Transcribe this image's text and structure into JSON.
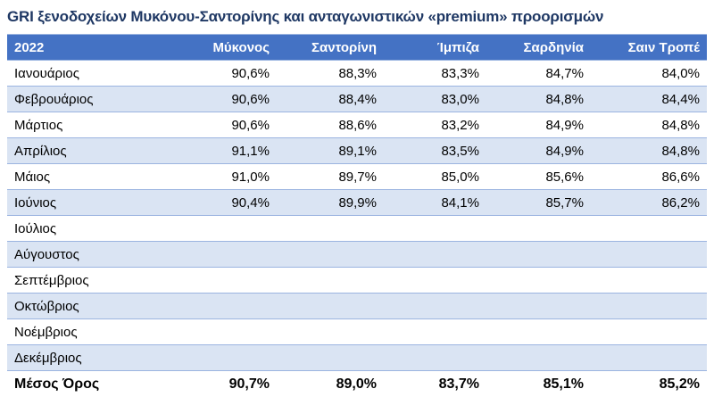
{
  "title": "GRI ξενοδοχείων Μυκόνου-Σαντορίνης και ανταγωνιστικών «premium» προορισμών",
  "table": {
    "headers": [
      "2022",
      "Μύκονος",
      "Σαντορίνη",
      "Ίμπιζα",
      "Σαρδηνία",
      "Σαιν Τροπέ"
    ],
    "rows": [
      [
        "Ιανουάριος",
        "90,6%",
        "88,3%",
        "83,3%",
        "84,7%",
        "84,0%"
      ],
      [
        "Φεβρουάριος",
        "90,6%",
        "88,4%",
        "83,0%",
        "84,8%",
        "84,4%"
      ],
      [
        "Μάρτιος",
        "90,6%",
        "88,6%",
        "83,2%",
        "84,9%",
        "84,8%"
      ],
      [
        "Απρίλιος",
        "91,1%",
        "89,1%",
        "83,5%",
        "84,9%",
        "84,8%"
      ],
      [
        "Μάιος",
        "91,0%",
        "89,7%",
        "85,0%",
        "85,6%",
        "86,6%"
      ],
      [
        "Ιούνιος",
        "90,4%",
        "89,9%",
        "84,1%",
        "85,7%",
        "86,2%"
      ],
      [
        "Ιούλιος",
        "",
        "",
        "",
        "",
        ""
      ],
      [
        "Αύγουστος",
        "",
        "",
        "",
        "",
        ""
      ],
      [
        "Σεπτέμβριος",
        "",
        "",
        "",
        "",
        ""
      ],
      [
        "Οκτώβριος",
        "",
        "",
        "",
        "",
        ""
      ],
      [
        "Νοέμβριος",
        "",
        "",
        "",
        "",
        ""
      ],
      [
        "Δεκέμβριος",
        "",
        "",
        "",
        "",
        ""
      ]
    ],
    "average": [
      "Μέσος Όρος",
      "90,7%",
      "89,0%",
      "83,7%",
      "85,1%",
      "85,2%"
    ]
  },
  "colors": {
    "title": "#1f3864",
    "header_bg": "#4472c4",
    "header_text": "#ffffff",
    "band": "#dae4f3"
  }
}
